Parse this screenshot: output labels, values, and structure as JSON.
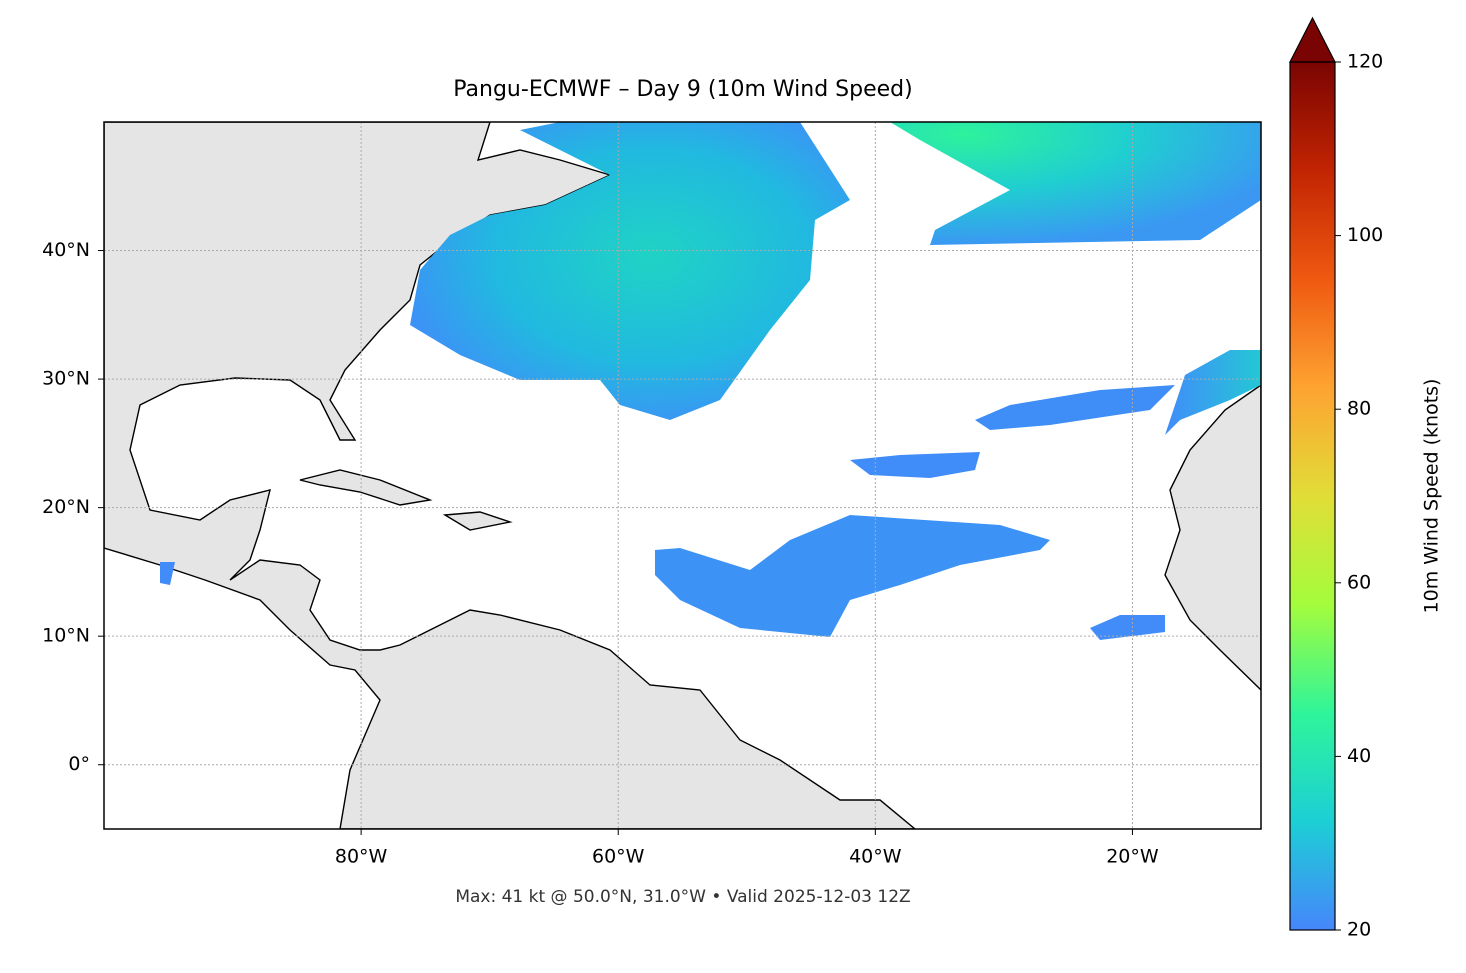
{
  "chart_data": {
    "type": "map",
    "title": "Pangu-ECMWF – Day 9 (10m Wind Speed)",
    "footer": "Max: 41 kt @ 50.0°N, 31.0°W • Valid 2025-12-03 12Z",
    "xlim": [
      -100,
      -10
    ],
    "ylim": [
      -5,
      50
    ],
    "xticks": [
      {
        "value": -80,
        "label": "80°W"
      },
      {
        "value": -60,
        "label": "60°W"
      },
      {
        "value": -40,
        "label": "40°W"
      },
      {
        "value": -20,
        "label": "20°W"
      }
    ],
    "yticks": [
      {
        "value": 0,
        "label": "0°"
      },
      {
        "value": 10,
        "label": "10°N"
      },
      {
        "value": 20,
        "label": "20°N"
      },
      {
        "value": 30,
        "label": "30°N"
      },
      {
        "value": 40,
        "label": "40°N"
      }
    ],
    "grid": true,
    "colorbar": {
      "label": "10m Wind Speed (knots)",
      "lim": [
        20,
        120
      ],
      "ticks": [
        20,
        40,
        60,
        80,
        100,
        120
      ],
      "extend": "max",
      "colors": [
        "#4686fb",
        "#1ccfd5",
        "#2ff59a",
        "#a4fc3c",
        "#e1dd37",
        "#fea331",
        "#ef5911",
        "#c22402",
        "#7a0403"
      ]
    }
  }
}
